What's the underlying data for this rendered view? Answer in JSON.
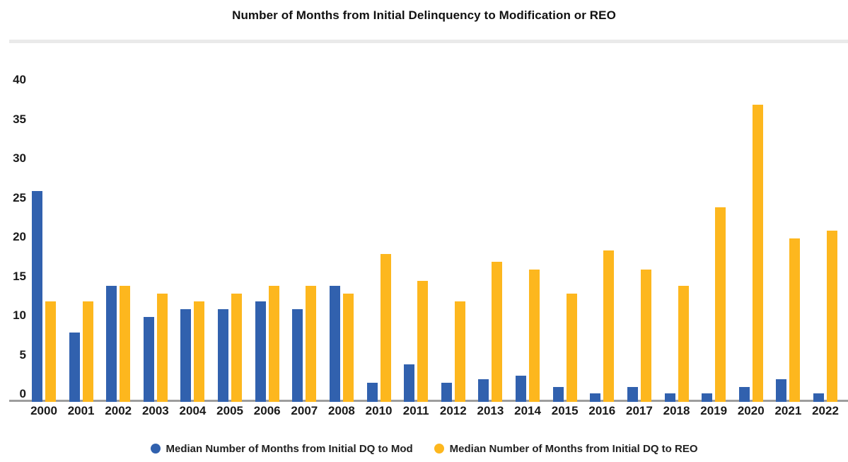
{
  "title": "Number of Months from Initial Delinquency to Modification or REO",
  "colors": {
    "mod_blue": "#3161AE",
    "reo_yellow": "#FDB71E",
    "axis_line": "#9D9D9D",
    "divider": "#EAEAEA",
    "label_text": "#1A1A1A"
  },
  "legend": {
    "items": [
      {
        "label": "Median Number of Months from Initial DQ to Mod",
        "color": "#3161AE"
      },
      {
        "label": "Median Number of Months from Initial DQ to REO",
        "color": "#FDB71E"
      }
    ]
  },
  "chart_data": {
    "type": "bar",
    "title": "Number of Months from Initial Delinquency to Modification or REO",
    "categories": [
      "2000",
      "2001",
      "2002",
      "2003",
      "2004",
      "2005",
      "2006",
      "2007",
      "2008",
      "2010",
      "2011",
      "2012",
      "2013",
      "2014",
      "2015",
      "2016",
      "2017",
      "2018",
      "2019",
      "2020",
      "2021",
      "2022"
    ],
    "series": [
      {
        "name": "Median Number of Months from Initial DQ to Mod",
        "color": "#3161AE",
        "values": [
          26,
          8,
          14,
          10,
          11,
          11,
          12,
          11,
          14,
          1.6,
          4,
          1.6,
          2.1,
          2.5,
          1.1,
          0.3,
          1.1,
          0.3,
          0.3,
          1.1,
          2.1,
          0.3
        ]
      },
      {
        "name": "Median Number of Months from Initial DQ to REO",
        "color": "#FDB71E",
        "values": [
          12,
          12,
          14,
          13,
          12,
          13,
          14,
          14,
          13,
          18,
          14.6,
          12,
          17,
          16,
          13,
          18.5,
          16,
          14,
          24,
          37,
          20,
          21
        ]
      }
    ],
    "xlabel": "",
    "ylabel": "",
    "ylim": [
      0,
      40
    ],
    "yticks": [
      0,
      5,
      10,
      15,
      20,
      25,
      30,
      35,
      40
    ],
    "grid": false,
    "legend_position": "bottom"
  }
}
